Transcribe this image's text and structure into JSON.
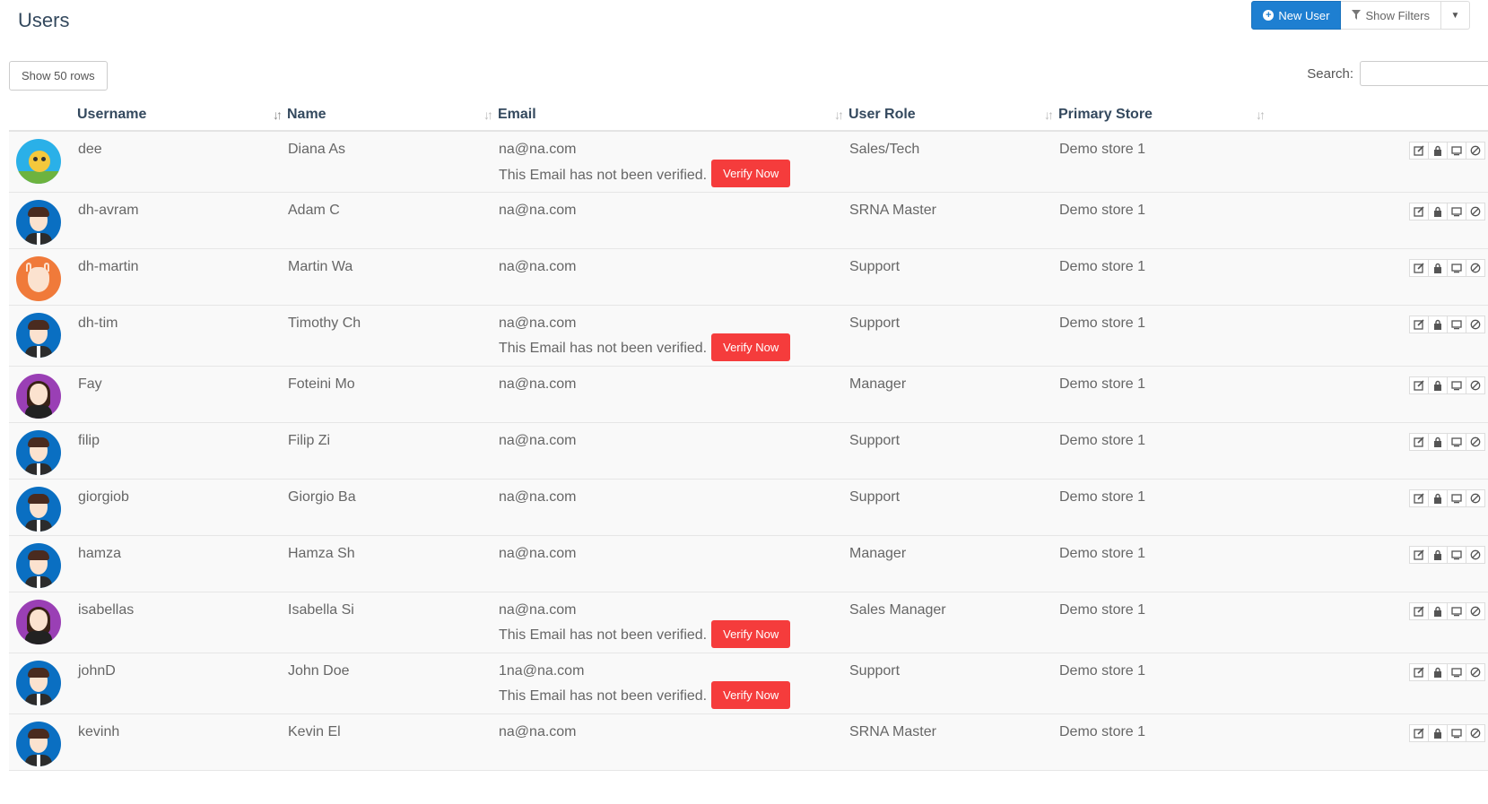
{
  "header": {
    "title": "Users",
    "new_user_label": "New User",
    "show_filters_label": "Show Filters"
  },
  "controls": {
    "show_rows_label": "Show 50 rows",
    "search_label": "Search:",
    "search_value": ""
  },
  "table": {
    "columns": [
      "Username",
      "Name",
      "Email",
      "User Role",
      "Primary Store"
    ],
    "verify_notice": "This Email has not been verified.",
    "verify_button_label": "Verify Now",
    "rows": [
      {
        "avatar": "cartoon",
        "username": "dee",
        "name": "Diana As",
        "email": "na@na.com",
        "unverified": true,
        "role": "Sales/Tech",
        "store": "Demo store 1"
      },
      {
        "avatar": "man",
        "username": "dh-avram",
        "name": "Adam C",
        "email": "na@na.com",
        "unverified": false,
        "role": "SRNA Master",
        "store": "Demo store 1"
      },
      {
        "avatar": "deer",
        "username": "dh-martin",
        "name": "Martin Wa",
        "email": "na@na.com",
        "unverified": false,
        "role": "Support",
        "store": "Demo store 1"
      },
      {
        "avatar": "man",
        "username": "dh-tim",
        "name": "Timothy Ch",
        "email": "na@na.com",
        "unverified": true,
        "role": "Support",
        "store": "Demo store 1"
      },
      {
        "avatar": "woman",
        "username": "Fay",
        "name": "Foteini Mo",
        "email": "na@na.com",
        "unverified": false,
        "role": "Manager",
        "store": "Demo store 1"
      },
      {
        "avatar": "man",
        "username": "filip",
        "name": "Filip Zi",
        "email": "na@na.com",
        "unverified": false,
        "role": "Support",
        "store": "Demo store 1"
      },
      {
        "avatar": "man",
        "username": "giorgiob",
        "name": "Giorgio Ba",
        "email": "na@na.com",
        "unverified": false,
        "role": "Support",
        "store": "Demo store 1"
      },
      {
        "avatar": "man",
        "username": "hamza",
        "name": "Hamza Sh",
        "email": "na@na.com",
        "unverified": false,
        "role": "Manager",
        "store": "Demo store 1"
      },
      {
        "avatar": "woman",
        "username": "isabellas",
        "name": "Isabella Si",
        "email": "na@na.com",
        "unverified": true,
        "role": "Sales Manager",
        "store": "Demo store 1"
      },
      {
        "avatar": "man",
        "username": "johnD",
        "name": "John Doe",
        "email": "1na@na.com",
        "unverified": true,
        "role": "Support",
        "store": "Demo store 1"
      },
      {
        "avatar": "man",
        "username": "kevinh",
        "name": "Kevin El",
        "email": "na@na.com",
        "unverified": false,
        "role": "SRNA Master",
        "store": "Demo store 1"
      }
    ]
  },
  "colors": {
    "primary": "#1e7fd1",
    "danger": "#f53c3c",
    "heading": "#34495e"
  },
  "icons": [
    "plus-circle-icon",
    "filter-icon",
    "caret-down-icon",
    "sort-icon",
    "edit-icon",
    "lock-icon",
    "monitor-icon",
    "ban-icon"
  ]
}
